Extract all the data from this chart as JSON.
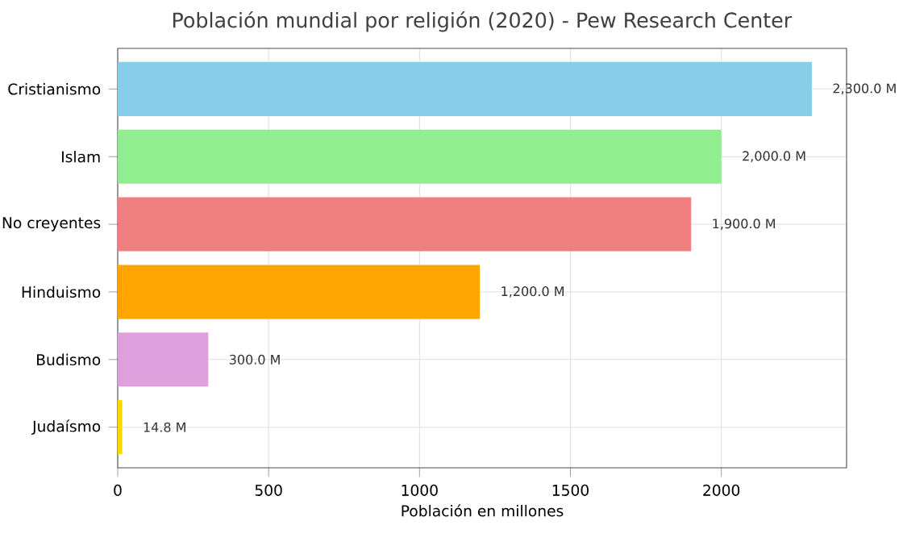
{
  "chart_data": {
    "type": "bar",
    "orientation": "horizontal",
    "title": "Población mundial por religión (2020) - Pew Research Center",
    "xlabel": "Población en millones",
    "categories": [
      "Cristianismo",
      "Islam",
      "No creyentes",
      "Hinduismo",
      "Budismo",
      "Judaísmo"
    ],
    "values": [
      2300,
      2000,
      1900,
      1200,
      300,
      14.8
    ],
    "colors": [
      "#87ceeb",
      "#90ee90",
      "#f08080",
      "#ffa500",
      "#dda0dd",
      "#ffd700"
    ],
    "value_labels": [
      "2,300.0 M",
      "2,000.0 M",
      "1,900.0 M",
      "1,200.0 M",
      "300.0 M",
      "14.8 M"
    ],
    "xlim": [
      0,
      2415
    ],
    "xticks": [
      0,
      500,
      1000,
      1500,
      2000
    ],
    "grid": true
  }
}
